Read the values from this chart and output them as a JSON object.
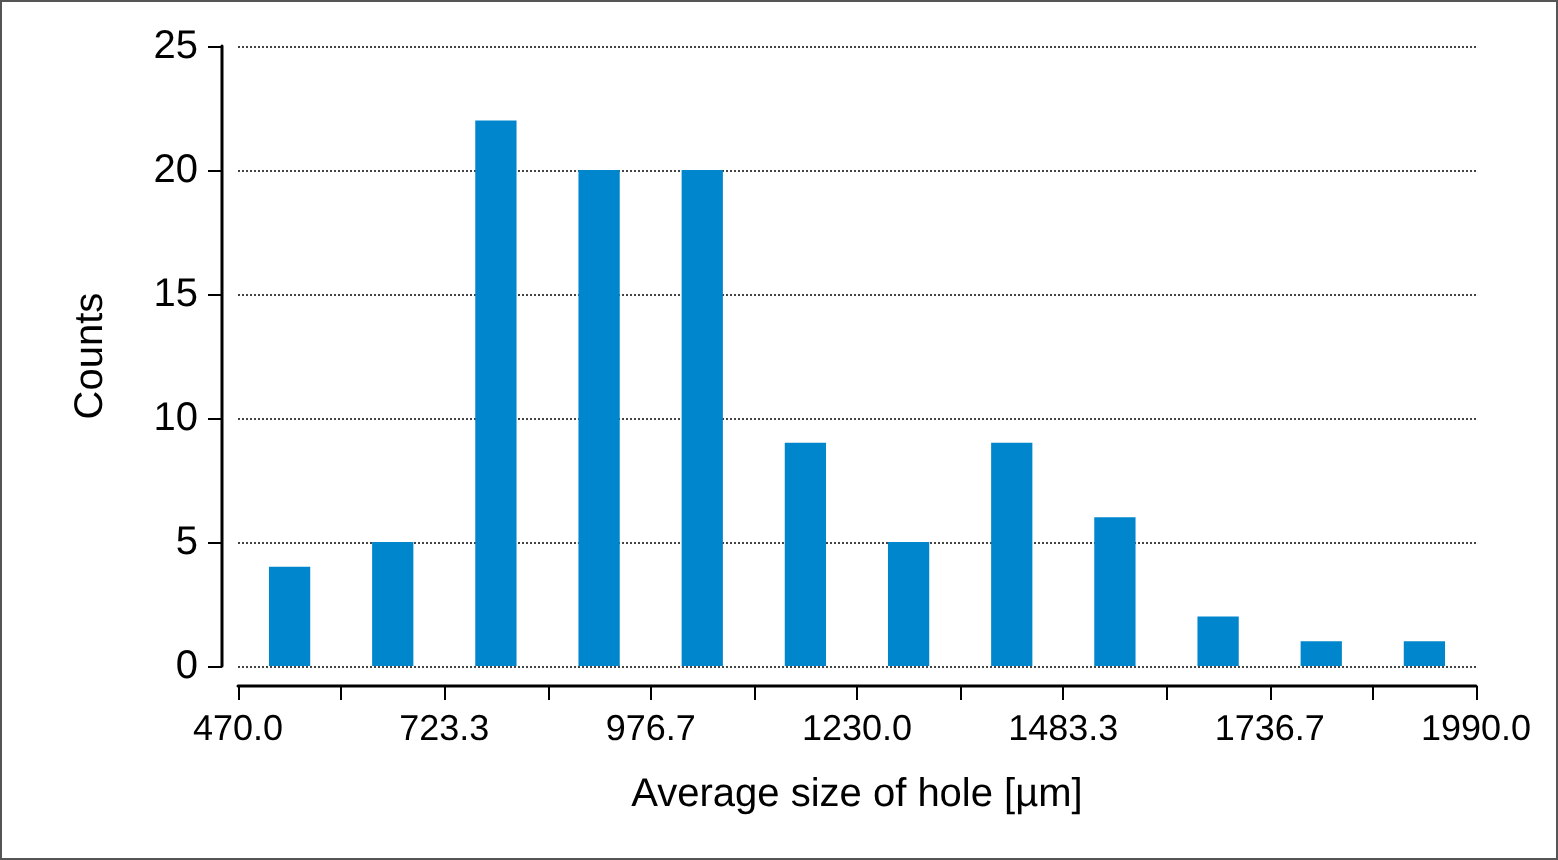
{
  "chart_data": {
    "type": "histogram",
    "xlabel": "Average size of hole [µm]",
    "ylabel": "Counts",
    "bins": [
      470.0,
      596.7,
      723.3,
      850.0,
      976.7,
      1103.3,
      1230.0,
      1356.7,
      1483.3,
      1610.0,
      1736.7,
      1863.3,
      1990.0
    ],
    "values": [
      4,
      5,
      22,
      20,
      20,
      9,
      5,
      9,
      6,
      2,
      1,
      1
    ],
    "color": "#0086cc",
    "xlim": [
      470.0,
      1990.0
    ],
    "xticks": [
      {
        "value": 470.0,
        "label": "470.0"
      },
      {
        "value": 596.7,
        "label": null
      },
      {
        "value": 723.3,
        "label": "723.3"
      },
      {
        "value": 850.0,
        "label": null
      },
      {
        "value": 976.7,
        "label": "976.7"
      },
      {
        "value": 1103.3,
        "label": null
      },
      {
        "value": 1230.0,
        "label": "1230.0"
      },
      {
        "value": 1356.7,
        "label": null
      },
      {
        "value": 1483.3,
        "label": "1483.3"
      },
      {
        "value": 1610.0,
        "label": null
      },
      {
        "value": 1736.7,
        "label": "1736.7"
      },
      {
        "value": 1863.3,
        "label": null
      },
      {
        "value": 1990.0,
        "label": "1990.0"
      }
    ],
    "ylim": [
      0,
      25
    ],
    "yticks": [
      0,
      5,
      10,
      15,
      20,
      25
    ],
    "grid": "y"
  }
}
